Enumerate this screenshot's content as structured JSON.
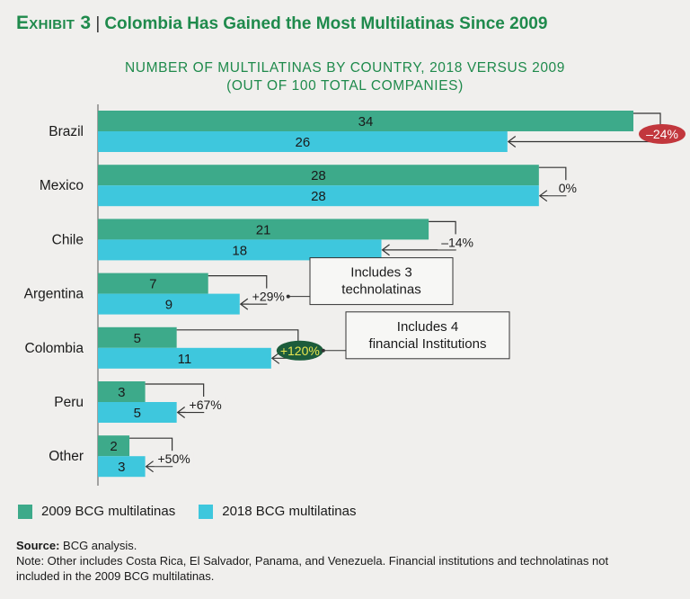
{
  "header": {
    "exhibit_label": "Exhibit 3",
    "exhibit_title": "Colombia Has Gained the Most Multilatinas Since 2009"
  },
  "chart_data": {
    "type": "bar",
    "orientation": "horizontal",
    "title_line1": "NUMBER OF MULTILATINAS BY COUNTRY, 2018 VERSUS 2009",
    "title_line2": "(OUT OF 100 TOTAL COMPANIES)",
    "categories": [
      "Brazil",
      "Mexico",
      "Chile",
      "Argentina",
      "Colombia",
      "Peru",
      "Other"
    ],
    "series": [
      {
        "name": "2009 BCG multilatinas",
        "color": "#3daa8a",
        "values": [
          34,
          28,
          21,
          7,
          5,
          3,
          2
        ]
      },
      {
        "name": "2018 BCG multilatinas",
        "color": "#3ec7dd",
        "values": [
          26,
          28,
          18,
          9,
          11,
          5,
          3
        ]
      }
    ],
    "changes": [
      "–24%",
      "0%",
      "–14%",
      "+29%",
      "+120%",
      "+67%",
      "+50%"
    ],
    "highlight_change_colors": {
      "Brazil": "#c2373d",
      "Colombia": "#1c5c3b"
    },
    "highlight_change_text": {
      "Brazil": "#ffffff",
      "Colombia": "#e8e650"
    },
    "callouts": [
      {
        "category": "Argentina",
        "lines": [
          "Includes 3",
          "technolatinas"
        ]
      },
      {
        "category": "Colombia",
        "lines": [
          "Includes 4",
          "financial Institutions"
        ]
      }
    ],
    "xlim": [
      0,
      34
    ]
  },
  "legend": {
    "item_2009": "2009 BCG multilatinas",
    "item_2018": "2018 BCG multilatinas"
  },
  "footer": {
    "source_label": "Source:",
    "source_text": " BCG analysis.",
    "note_text": "Note: Other includes Costa Rica, El Salvador, Panama, and Venezuela. Financial institutions and technolatinas not included in the 2009 BCG multilatinas."
  }
}
